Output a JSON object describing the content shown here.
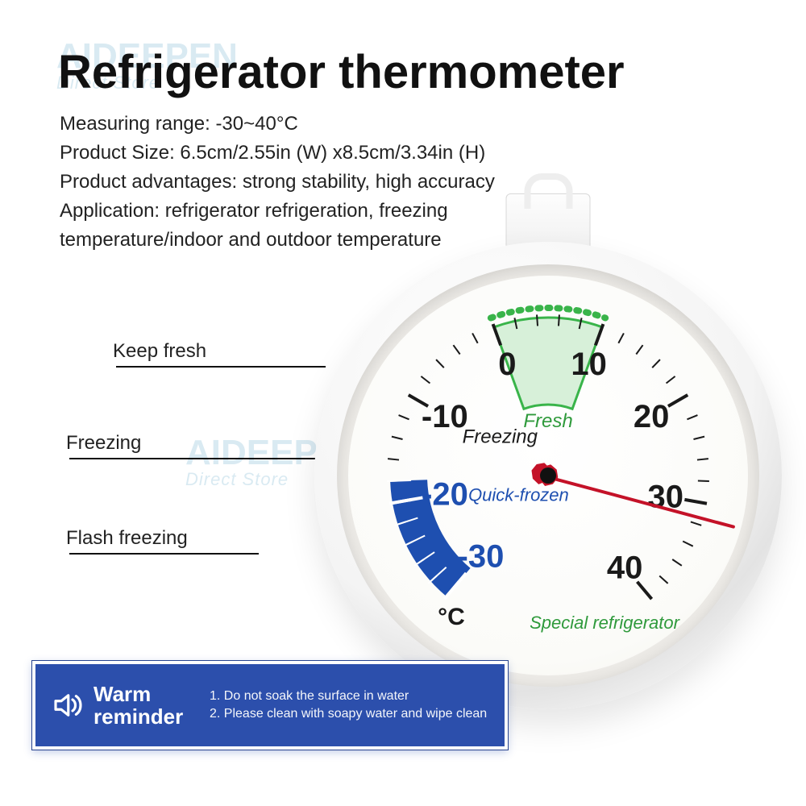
{
  "brand": {
    "name": "AIDEEPEN",
    "sub": "Direct Store"
  },
  "title": "Refrigerator thermometer",
  "specs": [
    "Measuring range: -30~40°C",
    "Product Size: 6.5cm/2.55in (W) x8.5cm/3.34in (H)",
    "Product advantages: strong stability, high accuracy",
    "Application: refrigerator refrigeration, freezing",
    "temperature/indoor and outdoor temperature"
  ],
  "callouts": {
    "keep_fresh": "Keep fresh",
    "freezing": "Freezing",
    "flash_freezing": "Flash freezing"
  },
  "dial": {
    "unit_label": "°C",
    "brand_label": "Special refrigerator",
    "zones": {
      "fresh": {
        "label": "Fresh",
        "from": 0,
        "to": 10,
        "color": "#39b44a"
      },
      "freezing": {
        "label": "Freezing",
        "from": -18,
        "to": 0,
        "color": "#1a1a1a"
      },
      "quick_frozen": {
        "label": "Quick-frozen",
        "from": -30,
        "to": -18,
        "color": "#1e4fb0"
      }
    },
    "scale": {
      "min": -30,
      "max": 40,
      "major_step": 10,
      "minor_step": 2,
      "start_angle_deg": 230,
      "end_angle_deg": -50,
      "major_labels": [
        "-30",
        "-20",
        "-10",
        "0",
        "10",
        "20",
        "30",
        "40"
      ]
    },
    "arc_colors": {
      "quick": "#1e4fb0",
      "fresh_outline": "#39b44a",
      "fresh_fill": "#d7f0d9",
      "tick_dark": "#1a1a1a",
      "tick_blue": "#1e4fb0",
      "label_dark": "#1a1a1a",
      "label_blue": "#1e4fb0",
      "label_green": "#2f9a3c"
    },
    "needle_angle_deg": 15,
    "needle_color": "#c41228",
    "face_bg": "#fbfbf8"
  },
  "reminder": {
    "title": "Warm reminder",
    "items": [
      "1. Do not soak the surface in water",
      "2. Please clean with soapy water and wipe clean"
    ],
    "bg": "#2c4fac"
  }
}
